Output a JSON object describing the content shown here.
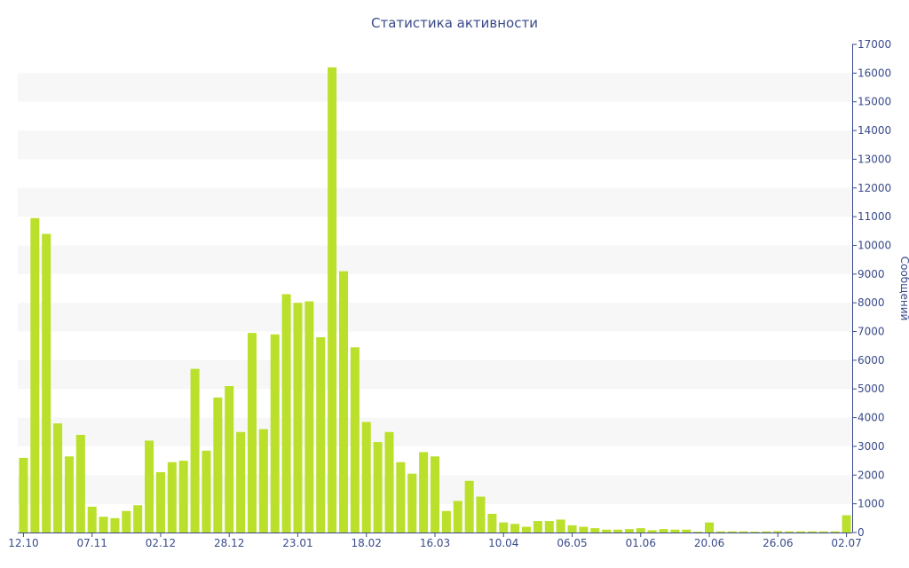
{
  "chart_data": {
    "type": "bar",
    "title": "Статистика активности",
    "ylabel": "Сообщений",
    "xlabel": "",
    "y_axis_side": "right",
    "ylim": [
      0,
      17000
    ],
    "y_ticks": [
      0,
      1000,
      2000,
      3000,
      4000,
      5000,
      6000,
      7000,
      8000,
      9000,
      10000,
      11000,
      12000,
      13000,
      14000,
      15000,
      16000,
      17000
    ],
    "x_tick_labels": [
      {
        "label": "12.10",
        "index": 0
      },
      {
        "label": "07.11",
        "index": 6
      },
      {
        "label": "02.12",
        "index": 12
      },
      {
        "label": "28.12",
        "index": 18
      },
      {
        "label": "23.01",
        "index": 24
      },
      {
        "label": "18.02",
        "index": 30
      },
      {
        "label": "16.03",
        "index": 36
      },
      {
        "label": "10.04",
        "index": 42
      },
      {
        "label": "06.05",
        "index": 48
      },
      {
        "label": "01.06",
        "index": 54
      },
      {
        "label": "20.06",
        "index": 60
      },
      {
        "label": "26.06",
        "index": 66
      },
      {
        "label": "02.07",
        "index": 72
      }
    ],
    "bar_color": "#bbe02c",
    "grid": "alternating bands",
    "values": [
      2600,
      10950,
      10400,
      3800,
      2650,
      3400,
      900,
      550,
      500,
      750,
      950,
      3200,
      2100,
      2450,
      2500,
      5700,
      2850,
      4700,
      5100,
      3500,
      6950,
      3600,
      6900,
      8300,
      8000,
      8050,
      6800,
      16200,
      9100,
      6450,
      3850,
      3150,
      3500,
      2450,
      2050,
      2800,
      2650,
      750,
      1100,
      1800,
      1250,
      650,
      350,
      300,
      200,
      400,
      400,
      450,
      250,
      200,
      150,
      100,
      100,
      120,
      150,
      80,
      120,
      100,
      100,
      30,
      350,
      40,
      40,
      40,
      30,
      40,
      50,
      40,
      40,
      40,
      40,
      40,
      600
    ]
  }
}
